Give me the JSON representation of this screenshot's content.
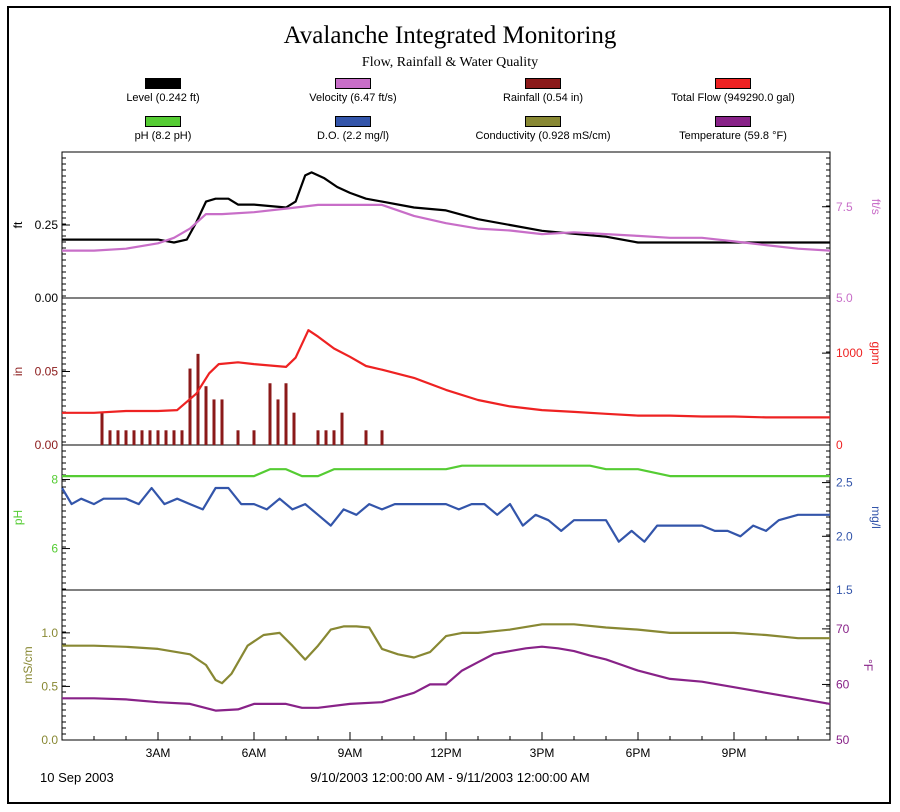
{
  "title": "Avalanche Integrated Monitoring",
  "subtitle": "Flow, Rainfall & Water Quality",
  "legend": [
    {
      "label": "Level (0.242 ft)",
      "color": "#000000"
    },
    {
      "label": "Velocity (6.47 ft/s)",
      "color": "#c86ec8"
    },
    {
      "label": "Rainfall (0.54 in)",
      "color": "#8b1a1a"
    },
    {
      "label": "Total Flow (949290.0 gal)",
      "color": "#ee2222"
    },
    {
      "label": "pH (8.2 pH)",
      "color": "#55cc33"
    },
    {
      "label": "D.O. (2.2 mg/l)",
      "color": "#3355aa"
    },
    {
      "label": "Conductivity (0.928 mS/cm)",
      "color": "#888833"
    },
    {
      "label": "Temperature (59.8 °F)",
      "color": "#882288"
    }
  ],
  "footer": {
    "date": "10 Sep 2003",
    "range": "9/10/2003 12:00:00 AM - 9/11/2003 12:00:00 AM"
  },
  "chart_data": [
    {
      "type": "line",
      "x_ticks": [
        "3AM",
        "6AM",
        "9AM",
        "12PM",
        "3PM",
        "6PM",
        "9PM"
      ],
      "x_unit": "hours",
      "x_range": [
        0,
        24
      ],
      "left_axis": {
        "label": "ft",
        "ticks": [
          "0.00",
          "0.25"
        ],
        "range": [
          0,
          0.5
        ],
        "color": "#000000"
      },
      "right_axis": {
        "label": "ft/s",
        "ticks": [
          "5.0",
          "7.5"
        ],
        "range": [
          5.0,
          9.0
        ],
        "color": "#c86ec8"
      },
      "series": [
        {
          "name": "Level",
          "axis": "left",
          "color": "#000000",
          "x": [
            0,
            1,
            3,
            3.5,
            3.9,
            4.2,
            4.5,
            4.8,
            5.2,
            5.5,
            6.0,
            7.0,
            7.3,
            7.6,
            7.8,
            8.2,
            8.6,
            9.0,
            9.5,
            10,
            11,
            12,
            13,
            14,
            15,
            16,
            17,
            18,
            19,
            20,
            21,
            22,
            23,
            24
          ],
          "y": [
            0.2,
            0.2,
            0.2,
            0.19,
            0.2,
            0.26,
            0.33,
            0.34,
            0.34,
            0.32,
            0.32,
            0.31,
            0.33,
            0.42,
            0.43,
            0.41,
            0.38,
            0.36,
            0.34,
            0.33,
            0.31,
            0.3,
            0.27,
            0.25,
            0.23,
            0.22,
            0.21,
            0.19,
            0.19,
            0.19,
            0.19,
            0.19,
            0.19,
            0.19
          ]
        },
        {
          "name": "Velocity",
          "axis": "right",
          "color": "#c86ec8",
          "x": [
            0,
            1,
            2,
            3,
            3.5,
            4.0,
            4.5,
            5.0,
            6,
            7,
            8,
            9,
            10,
            11,
            12,
            13,
            14,
            15,
            16,
            17,
            18,
            19,
            20,
            21,
            22,
            23,
            24
          ],
          "y": [
            6.3,
            6.3,
            6.35,
            6.5,
            6.65,
            6.9,
            7.3,
            7.3,
            7.35,
            7.45,
            7.55,
            7.55,
            7.55,
            7.25,
            7.05,
            6.9,
            6.85,
            6.75,
            6.8,
            6.75,
            6.7,
            6.65,
            6.65,
            6.55,
            6.45,
            6.35,
            6.3
          ]
        }
      ]
    },
    {
      "type": "bar",
      "x_ticks": [
        "3AM",
        "6AM",
        "9AM",
        "12PM",
        "3PM",
        "6PM",
        "9PM"
      ],
      "x_unit": "hours",
      "x_range": [
        0,
        24
      ],
      "left_axis": {
        "label": "in",
        "ticks": [
          "0.00",
          "0.05"
        ],
        "range": [
          0,
          0.1
        ],
        "color": "#8b1a1a"
      },
      "right_axis": {
        "label": "gpm",
        "ticks": [
          "0",
          "1000"
        ],
        "range": [
          0,
          1600
        ],
        "color": "#ee2222"
      },
      "rainfall_x": [
        1.25,
        1.5,
        1.75,
        2.0,
        2.25,
        2.5,
        2.75,
        3.0,
        3.25,
        3.5,
        3.75,
        4.0,
        4.25,
        4.5,
        4.75,
        5.0,
        5.25,
        5.5,
        6.0,
        6.5,
        6.75,
        7.0,
        7.25,
        7.5,
        8.0,
        8.25,
        8.5,
        8.75,
        9.0,
        9.5,
        10.0
      ],
      "rainfall_y": [
        0.022,
        0.01,
        0.01,
        0.01,
        0.01,
        0.01,
        0.01,
        0.01,
        0.01,
        0.01,
        0.01,
        0.052,
        0.062,
        0.04,
        0.031,
        0.031,
        0.0,
        0.01,
        0.01,
        0.042,
        0.031,
        0.042,
        0.022,
        0.0,
        0.01,
        0.01,
        0.01,
        0.022,
        0.0,
        0.01,
        0.01
      ],
      "series": [
        {
          "name": "Total Flow",
          "axis": "right",
          "color": "#ee2222",
          "x": [
            0,
            1,
            2,
            3,
            3.6,
            4.2,
            4.6,
            4.9,
            5.5,
            6.0,
            7.0,
            7.3,
            7.7,
            8.0,
            8.5,
            9.0,
            9.5,
            10,
            11,
            12,
            13,
            14,
            15,
            16,
            17,
            18,
            19,
            20,
            21,
            22,
            23,
            24
          ],
          "y": [
            350,
            350,
            370,
            370,
            380,
            560,
            780,
            880,
            900,
            880,
            850,
            950,
            1250,
            1180,
            1050,
            960,
            860,
            820,
            730,
            600,
            490,
            420,
            380,
            360,
            340,
            320,
            320,
            310,
            310,
            300,
            300,
            300
          ]
        }
      ]
    },
    {
      "type": "line",
      "x_ticks": [
        "3AM",
        "6AM",
        "9AM",
        "12PM",
        "3PM",
        "6PM",
        "9PM"
      ],
      "x_unit": "hours",
      "x_range": [
        0,
        24
      ],
      "left_axis": {
        "label": "pH",
        "ticks": [
          "6",
          "8"
        ],
        "range": [
          4.8,
          9.0
        ],
        "color": "#55cc33"
      },
      "right_axis": {
        "label": "mg/l",
        "ticks": [
          "1.5",
          "2.0",
          "2.5"
        ],
        "range": [
          1.5,
          2.85
        ],
        "color": "#3355aa"
      },
      "series": [
        {
          "name": "pH",
          "axis": "left",
          "color": "#55cc33",
          "x": [
            0,
            6.0,
            6.5,
            7.0,
            7.5,
            8.0,
            8.5,
            9.0,
            12.0,
            12.5,
            13.0,
            16.5,
            17.0,
            18.0,
            19.0,
            20.0,
            24.0
          ],
          "y": [
            8.1,
            8.1,
            8.3,
            8.3,
            8.1,
            8.1,
            8.3,
            8.3,
            8.3,
            8.4,
            8.4,
            8.4,
            8.3,
            8.3,
            8.1,
            8.1,
            8.1
          ]
        },
        {
          "name": "D.O.",
          "axis": "right",
          "color": "#3355aa",
          "x": [
            0,
            0.3,
            0.6,
            1.0,
            1.3,
            2.0,
            2.4,
            2.8,
            3.2,
            3.6,
            4.0,
            4.4,
            4.8,
            5.2,
            5.6,
            6.0,
            6.4,
            6.8,
            7.2,
            7.6,
            8.0,
            8.4,
            8.8,
            9.2,
            9.6,
            10.0,
            10.4,
            11.0,
            12.0,
            12.4,
            12.8,
            13.2,
            13.6,
            14.0,
            14.4,
            14.8,
            15.2,
            15.6,
            16.0,
            16.4,
            17.0,
            17.4,
            17.8,
            18.2,
            18.6,
            19.0,
            19.4,
            20.0,
            20.4,
            20.8,
            21.2,
            21.6,
            22.0,
            22.4,
            23.0,
            24.0
          ],
          "y": [
            2.45,
            2.3,
            2.35,
            2.3,
            2.35,
            2.35,
            2.3,
            2.45,
            2.3,
            2.35,
            2.3,
            2.25,
            2.45,
            2.45,
            2.3,
            2.3,
            2.25,
            2.35,
            2.25,
            2.3,
            2.2,
            2.1,
            2.25,
            2.2,
            2.3,
            2.25,
            2.3,
            2.3,
            2.3,
            2.25,
            2.3,
            2.3,
            2.2,
            2.3,
            2.1,
            2.2,
            2.15,
            2.05,
            2.15,
            2.15,
            2.15,
            1.95,
            2.05,
            1.95,
            2.1,
            2.1,
            2.1,
            2.1,
            2.05,
            2.05,
            2.0,
            2.1,
            2.05,
            2.15,
            2.2,
            2.2
          ]
        }
      ]
    },
    {
      "type": "line",
      "x_ticks": [
        "3AM",
        "6AM",
        "9AM",
        "12PM",
        "3PM",
        "6PM",
        "9PM"
      ],
      "x_unit": "hours",
      "x_range": [
        0,
        24
      ],
      "left_axis": {
        "label": "mS/cm",
        "ticks": [
          "0.0",
          "0.5",
          "1.0"
        ],
        "range": [
          0.0,
          1.4
        ],
        "color": "#888833"
      },
      "right_axis": {
        "label": "°F",
        "ticks": [
          "50",
          "60",
          "70"
        ],
        "range": [
          50,
          77
        ],
        "color": "#882288"
      },
      "series": [
        {
          "name": "Conductivity",
          "axis": "left",
          "color": "#888833",
          "x": [
            0,
            1,
            2,
            3,
            4,
            4.5,
            4.8,
            5.0,
            5.3,
            5.8,
            6.3,
            6.8,
            7.2,
            7.6,
            8.0,
            8.4,
            8.8,
            9.2,
            9.6,
            10.0,
            10.5,
            11.0,
            11.5,
            12.0,
            12.5,
            13.0,
            14.0,
            15.0,
            15.5,
            16.0,
            17.0,
            18.0,
            19.0,
            20.0,
            21.0,
            22.0,
            23.0,
            24.0
          ],
          "y": [
            0.88,
            0.88,
            0.87,
            0.85,
            0.8,
            0.7,
            0.56,
            0.53,
            0.62,
            0.88,
            0.98,
            1.0,
            0.88,
            0.75,
            0.88,
            1.03,
            1.06,
            1.06,
            1.05,
            0.85,
            0.8,
            0.77,
            0.82,
            0.97,
            1.0,
            1.0,
            1.03,
            1.08,
            1.08,
            1.08,
            1.05,
            1.03,
            1.0,
            1.0,
            1.0,
            0.98,
            0.95,
            0.95
          ]
        },
        {
          "name": "Temperature",
          "axis": "right",
          "color": "#882288",
          "x": [
            0,
            1,
            2,
            3,
            4,
            4.8,
            5.5,
            6,
            7,
            7.5,
            8,
            9,
            10,
            11,
            11.5,
            12,
            12.5,
            13,
            13.5,
            14,
            14.5,
            15,
            15.5,
            16,
            16.5,
            17,
            17.5,
            18,
            19,
            20,
            21,
            22,
            23,
            24
          ],
          "y": [
            57.5,
            57.5,
            57.3,
            56.8,
            56.5,
            55.3,
            55.5,
            56.5,
            56.5,
            55.8,
            55.8,
            56.5,
            56.8,
            58.5,
            60.0,
            60.0,
            62.5,
            64.0,
            65.5,
            66.0,
            66.5,
            66.8,
            66.5,
            66.0,
            65.2,
            64.5,
            63.5,
            62.5,
            61.0,
            60.5,
            59.5,
            58.5,
            57.5,
            56.5
          ]
        }
      ]
    }
  ]
}
